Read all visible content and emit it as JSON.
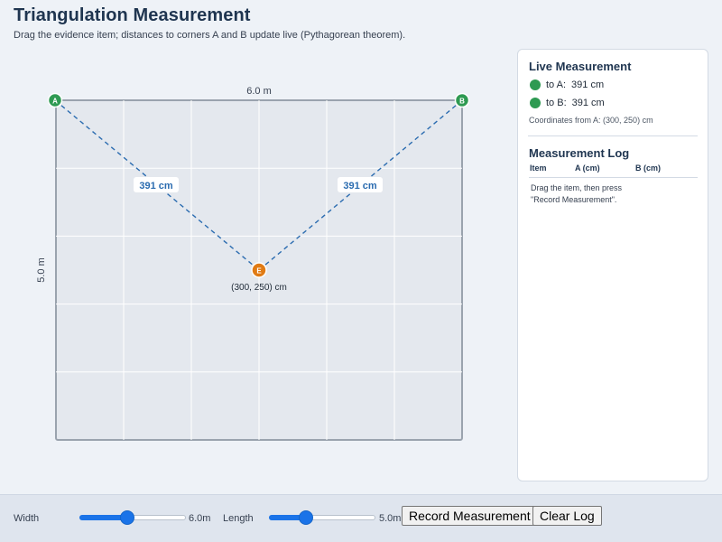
{
  "header": {
    "title": "Triangulation Measurement",
    "subtitle": "Drag the evidence item; distances to corners A and B update live (Pythagorean theorem)."
  },
  "room": {
    "width_label": "6.0 m",
    "length_label": "5.0 m",
    "width_m": 6.0,
    "length_m": 5.0,
    "grid_divisions_x": 6,
    "grid_divisions_y": 5,
    "grid": true,
    "corner_a": "A",
    "corner_b": "B",
    "evidence_marker": "E",
    "evidence_x_cm": 300,
    "evidence_y_cm": 250,
    "evidence_coord_label": "(300, 250) cm",
    "dist_a_label": "391 cm",
    "dist_b_label": "391 cm"
  },
  "live": {
    "title": "Live Measurement",
    "to_a_label": "to A:",
    "to_a_value": "391 cm",
    "to_b_label": "to B:",
    "to_b_value": "391 cm",
    "coords_text": "Coordinates from A: (300, 250) cm"
  },
  "log": {
    "title": "Measurement Log",
    "columns": [
      "Item",
      "A (cm)",
      "B (cm)"
    ],
    "empty_message": "Drag the item, then press\n\"Record Measurement\"."
  },
  "controls": {
    "width_label": "Width",
    "width_value": "6.0m",
    "width_fraction": 0.44,
    "length_label": "Length",
    "length_value": "5.0m",
    "length_fraction": 0.32,
    "record_button": "Record Measurement",
    "clear_button": "Clear Log"
  },
  "colors": {
    "corner": "#2e9a52",
    "evidence": "#e07b15",
    "line": "#2b6cb0",
    "title": "#1f3550",
    "accent": "#1a73e8"
  }
}
